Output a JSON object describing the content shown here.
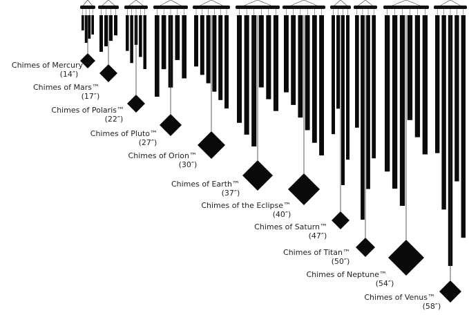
{
  "chimes": [
    {
      "name": "Chimes of Mercury™",
      "size": "(14″)"
    },
    {
      "name": "Chimes of Mars™",
      "size": "(17″)"
    },
    {
      "name": "Chimes of Polaris™",
      "size": "(22″)"
    },
    {
      "name": "Chimes of Pluto™",
      "size": "(27″)"
    },
    {
      "name": "Chimes of Orion™",
      "size": "(30″)"
    },
    {
      "name": "Chimes of Earth™",
      "size": "(37″)"
    },
    {
      "name": "Chimes of the Eclipse™",
      "size": "(40″)"
    },
    {
      "name": "Chimes of Saturn™",
      "size": "(47″)"
    },
    {
      "name": "Chimes of Titan™",
      "size": "(50″)"
    },
    {
      "name": "Chimes of Neptune™",
      "size": "(54″)"
    },
    {
      "name": "Chimes of Venus™",
      "size": "(58″)"
    }
  ]
}
